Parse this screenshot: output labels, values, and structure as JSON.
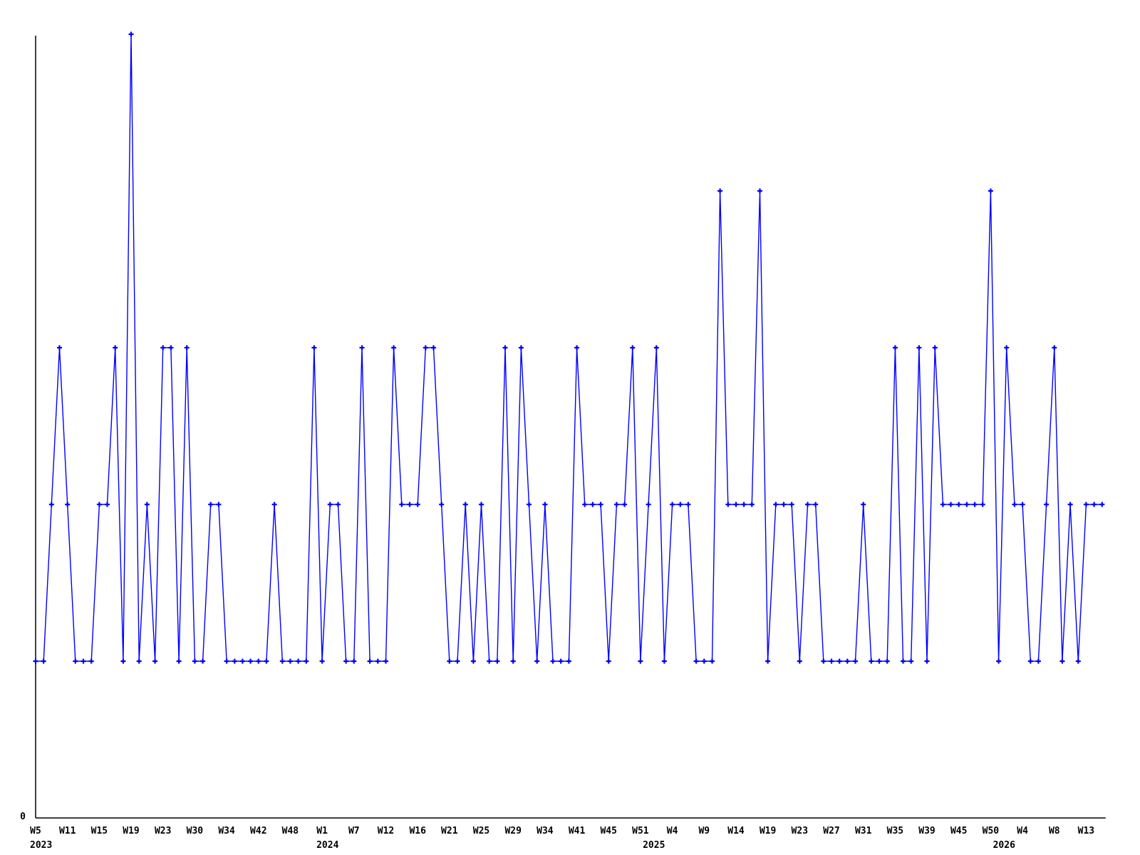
{
  "chart_data": {
    "type": "line",
    "title": "",
    "xlabel": "",
    "ylabel": "",
    "ylim": [
      0,
      5
    ],
    "y_origin_label": "0",
    "grid": false,
    "legend": "none",
    "marker": "plus",
    "line_color": "#0000ff",
    "axis_color": "#000000",
    "text_color": "#000000",
    "background_color": "#ffffff",
    "x_axis_type": "category-weeks",
    "values": [
      1,
      1,
      2,
      3,
      2,
      1,
      1,
      1,
      2,
      2,
      3,
      1,
      5,
      1,
      2,
      1,
      3,
      3,
      1,
      3,
      1,
      1,
      2,
      2,
      1,
      1,
      1,
      1,
      1,
      1,
      2,
      1,
      1,
      1,
      1,
      3,
      1,
      2,
      2,
      1,
      1,
      3,
      1,
      1,
      1,
      3,
      2,
      2,
      2,
      3,
      3,
      2,
      1,
      1,
      2,
      1,
      2,
      1,
      1,
      3,
      1,
      3,
      2,
      1,
      2,
      1,
      1,
      1,
      3,
      2,
      2,
      2,
      1,
      2,
      2,
      3,
      1,
      2,
      3,
      1,
      2,
      2,
      2,
      1,
      1,
      1,
      4,
      2,
      2,
      2,
      2,
      4,
      1,
      2,
      2,
      2,
      1,
      2,
      2,
      1,
      1,
      1,
      1,
      1,
      2,
      1,
      1,
      1,
      3,
      1,
      1,
      3,
      1,
      3,
      2,
      2,
      2,
      2,
      2,
      2,
      4,
      1,
      3,
      2,
      2,
      1,
      1,
      2,
      3,
      1,
      2,
      1,
      2,
      2,
      2
    ],
    "x_tick_labels": [
      {
        "at": 0,
        "label": "W5"
      },
      {
        "at": 4,
        "label": "W11"
      },
      {
        "at": 8,
        "label": "W15"
      },
      {
        "at": 12,
        "label": "W19"
      },
      {
        "at": 16,
        "label": "W23"
      },
      {
        "at": 20,
        "label": "W30"
      },
      {
        "at": 24,
        "label": "W34"
      },
      {
        "at": 28,
        "label": "W42"
      },
      {
        "at": 32,
        "label": "W48"
      },
      {
        "at": 36,
        "label": "W1"
      },
      {
        "at": 40,
        "label": "W7"
      },
      {
        "at": 44,
        "label": "W12"
      },
      {
        "at": 48,
        "label": "W16"
      },
      {
        "at": 52,
        "label": "W21"
      },
      {
        "at": 56,
        "label": "W25"
      },
      {
        "at": 60,
        "label": "W29"
      },
      {
        "at": 64,
        "label": "W34"
      },
      {
        "at": 68,
        "label": "W41"
      },
      {
        "at": 72,
        "label": "W45"
      },
      {
        "at": 76,
        "label": "W51"
      },
      {
        "at": 80,
        "label": "W4"
      },
      {
        "at": 84,
        "label": "W9"
      },
      {
        "at": 88,
        "label": "W14"
      },
      {
        "at": 92,
        "label": "W19"
      },
      {
        "at": 96,
        "label": "W23"
      },
      {
        "at": 100,
        "label": "W27"
      },
      {
        "at": 104,
        "label": "W31"
      },
      {
        "at": 108,
        "label": "W35"
      },
      {
        "at": 112,
        "label": "W39"
      },
      {
        "at": 116,
        "label": "W45"
      },
      {
        "at": 120,
        "label": "W50"
      },
      {
        "at": 124,
        "label": "W4"
      },
      {
        "at": 128,
        "label": "W8"
      },
      {
        "at": 132,
        "label": "W13"
      }
    ],
    "year_labels": [
      {
        "at": 0,
        "label": "2023"
      },
      {
        "at": 36,
        "label": "2024"
      },
      {
        "at": 77,
        "label": "2025"
      },
      {
        "at": 121,
        "label": "2026"
      }
    ]
  }
}
